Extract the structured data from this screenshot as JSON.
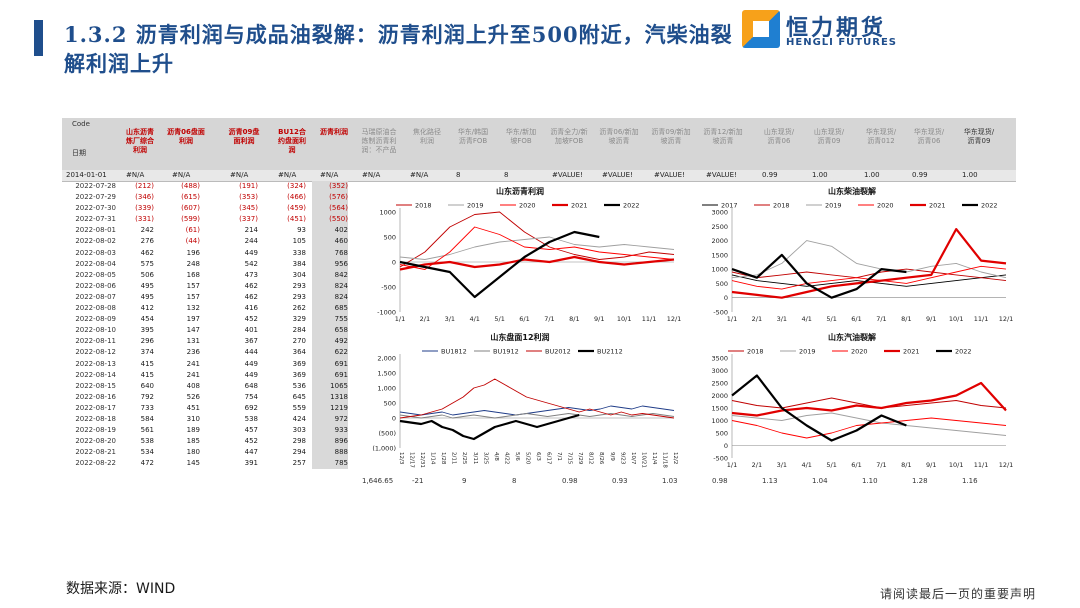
{
  "header": {
    "title_line1": "1.3.2 沥青利润与成品油裂解：沥青利润上升至500附近，汽柴油裂",
    "title_line2": "解利润上升",
    "logo_cn": "恒力期货",
    "logo_en": "HENGLI FUTURES"
  },
  "table": {
    "code_label": "Code",
    "date_label": "日期",
    "headers": [
      {
        "text": "山东沥青\n炼厂综合\n利润",
        "style": "red"
      },
      {
        "text": "沥青06盘面\n利润",
        "style": "red"
      },
      {
        "text": "沥青09盘\n面利润",
        "style": "red"
      },
      {
        "text": "BU12合\n约盘面利\n润",
        "style": "red"
      },
      {
        "text": "沥青利润",
        "style": "red"
      },
      {
        "text": "马瑞原油合\n炼制沥青利\n润：不产品",
        "style": "grey"
      },
      {
        "text": "焦化路径\n利润",
        "style": "grey"
      },
      {
        "text": "华东/韩国\n沥青FOB",
        "style": "grey"
      },
      {
        "text": "华东/新加\n坡FOB",
        "style": "grey"
      },
      {
        "text": "沥青全力/新\n加坡FOB",
        "style": "grey"
      },
      {
        "text": "沥青06/新加\n坡沥青",
        "style": "grey"
      },
      {
        "text": "沥青09/新加\n坡沥青",
        "style": "grey"
      },
      {
        "text": "沥青12/新加\n坡沥青",
        "style": "grey"
      },
      {
        "text": "山东现货/\n沥青06",
        "style": "grey"
      },
      {
        "text": "山东现货/\n沥青09",
        "style": "grey"
      },
      {
        "text": "华东现货/\n沥青012",
        "style": "grey"
      },
      {
        "text": "华东现货/\n沥青06",
        "style": "grey"
      },
      {
        "text": "华东现货/\n沥青09",
        "style": "dark"
      }
    ],
    "first_row": [
      "2014-01-01",
      "#N/A",
      "#N/A",
      "#N/A",
      "#N/A",
      "#N/A",
      "#N/A",
      "#N/A",
      "8",
      "8",
      "#VALUE!",
      "#VALUE!",
      "#VALUE!",
      "#VALUE!",
      "0.99",
      "1.00",
      "1.00",
      "0.99",
      "1.00"
    ],
    "rows": [
      [
        "2022-07-28",
        "(212)",
        "(488)",
        "(191)",
        "(324)",
        "(352)"
      ],
      [
        "2022-07-29",
        "(346)",
        "(615)",
        "(353)",
        "(466)",
        "(576)"
      ],
      [
        "2022-07-30",
        "(339)",
        "(607)",
        "(345)",
        "(459)",
        "(564)"
      ],
      [
        "2022-07-31",
        "(331)",
        "(599)",
        "(337)",
        "(451)",
        "(550)"
      ],
      [
        "2022-08-01",
        "242",
        "(61)",
        "214",
        "93",
        "402"
      ],
      [
        "2022-08-02",
        "276",
        "(44)",
        "244",
        "105",
        "460"
      ],
      [
        "2022-08-03",
        "462",
        "196",
        "449",
        "338",
        "768"
      ],
      [
        "2022-08-04",
        "575",
        "248",
        "542",
        "384",
        "956"
      ],
      [
        "2022-08-05",
        "506",
        "168",
        "473",
        "304",
        "842"
      ],
      [
        "2022-08-06",
        "495",
        "157",
        "462",
        "293",
        "824"
      ],
      [
        "2022-08-07",
        "495",
        "157",
        "462",
        "293",
        "824"
      ],
      [
        "2022-08-08",
        "412",
        "132",
        "416",
        "262",
        "685"
      ],
      [
        "2022-08-09",
        "454",
        "197",
        "452",
        "329",
        "755"
      ],
      [
        "2022-08-10",
        "395",
        "147",
        "401",
        "284",
        "658"
      ],
      [
        "2022-08-11",
        "296",
        "131",
        "367",
        "270",
        "492"
      ],
      [
        "2022-08-12",
        "374",
        "236",
        "444",
        "364",
        "622"
      ],
      [
        "2022-08-13",
        "415",
        "241",
        "449",
        "369",
        "691"
      ],
      [
        "2022-08-14",
        "415",
        "241",
        "449",
        "369",
        "691"
      ],
      [
        "2022-08-15",
        "640",
        "408",
        "648",
        "536",
        "1065"
      ],
      [
        "2022-08-16",
        "792",
        "526",
        "754",
        "645",
        "1318"
      ],
      [
        "2022-08-17",
        "733",
        "451",
        "692",
        "559",
        "1219"
      ],
      [
        "2022-08-18",
        "584",
        "310",
        "538",
        "424",
        "972"
      ],
      [
        "2022-08-19",
        "561",
        "189",
        "457",
        "303",
        "933"
      ],
      [
        "2022-08-20",
        "538",
        "185",
        "452",
        "298",
        "896"
      ],
      [
        "2022-08-21",
        "534",
        "180",
        "447",
        "294",
        "888"
      ],
      [
        "2022-08-22",
        "472",
        "145",
        "391",
        "257",
        "785"
      ]
    ],
    "last_line": [
      "1,646.65",
      "-21",
      "9",
      "8",
      "0.98",
      "0.93",
      "1.03",
      "0.98",
      "1.13",
      "1.04",
      "1.10",
      "1.28",
      "1.16"
    ]
  },
  "colors": {
    "y2017": "#000000",
    "y2018": "#c00000",
    "y2019": "#a0a0a0",
    "y2020": "#ff0000",
    "y2021": "#e00000",
    "y2022": "#000000",
    "bu1812": "#1f3c88",
    "bu1912": "#808080",
    "bu2012": "#c00000",
    "bu2112": "#000000"
  },
  "chart_data": [
    {
      "type": "line",
      "title": "山东沥青利润",
      "x": [
        "1/1",
        "2/1",
        "3/1",
        "4/1",
        "5/1",
        "6/1",
        "7/1",
        "8/1",
        "9/1",
        "10/1",
        "11/1",
        "12/1"
      ],
      "ylim": [
        -1000,
        1000
      ],
      "yticks": [
        "-1000",
        "-500",
        "0",
        "500",
        "1000"
      ],
      "series": [
        {
          "name": "2018",
          "values": [
            -100,
            200,
            700,
            950,
            1000,
            600,
            300,
            150,
            50,
            100,
            200,
            150
          ]
        },
        {
          "name": "2019",
          "values": [
            100,
            50,
            150,
            300,
            400,
            450,
            500,
            350,
            300,
            350,
            300,
            250
          ]
        },
        {
          "name": "2020",
          "values": [
            -50,
            -150,
            200,
            700,
            550,
            300,
            250,
            300,
            200,
            150,
            100,
            50
          ]
        },
        {
          "name": "2021",
          "values": [
            -150,
            -50,
            0,
            -100,
            -50,
            50,
            0,
            100,
            0,
            -50,
            0,
            50
          ]
        },
        {
          "name": "2022",
          "values": [
            0,
            -100,
            -200,
            -700,
            -300,
            100,
            400,
            600,
            500,
            null,
            null,
            null
          ]
        }
      ]
    },
    {
      "type": "line",
      "title": "山东柴油裂解",
      "x": [
        "1/1",
        "2/1",
        "3/1",
        "4/1",
        "5/1",
        "6/1",
        "7/1",
        "8/1",
        "9/1",
        "10/1",
        "11/1",
        "12/1"
      ],
      "ylim": [
        -500,
        3000
      ],
      "yticks": [
        "-500",
        "0",
        "500",
        "1000",
        "1500",
        "2000",
        "2500",
        "3000"
      ],
      "series": [
        {
          "name": "2017",
          "values": [
            800,
            600,
            500,
            400,
            500,
            600,
            500,
            400,
            500,
            600,
            700,
            800
          ]
        },
        {
          "name": "2018",
          "values": [
            900,
            700,
            800,
            900,
            800,
            700,
            900,
            1000,
            900,
            800,
            700,
            600
          ]
        },
        {
          "name": "2019",
          "values": [
            700,
            800,
            1200,
            2000,
            1800,
            1200,
            1000,
            900,
            1100,
            1200,
            900,
            700
          ]
        },
        {
          "name": "2020",
          "values": [
            600,
            400,
            300,
            500,
            600,
            700,
            600,
            500,
            700,
            900,
            1100,
            1000
          ]
        },
        {
          "name": "2021",
          "values": [
            200,
            100,
            0,
            200,
            400,
            500,
            600,
            700,
            800,
            2400,
            1300,
            1200
          ]
        },
        {
          "name": "2022",
          "values": [
            1000,
            700,
            1500,
            500,
            0,
            300,
            1000,
            900,
            null,
            null,
            null,
            null
          ]
        }
      ]
    },
    {
      "type": "line",
      "title": "山东盘面12利润",
      "x": [
        "12/3",
        "12/17",
        "12/31",
        "1/14",
        "1/28",
        "2/11",
        "2/25",
        "3/11",
        "3/25",
        "4/8",
        "4/22",
        "5/6",
        "5/20",
        "6/3",
        "6/17",
        "7/1",
        "7/15",
        "7/29",
        "8/12",
        "8/26",
        "9/9",
        "9/23",
        "10/7",
        "10/21",
        "11/4",
        "11/18",
        "12/2"
      ],
      "ylim": [
        -1000,
        2000
      ],
      "yticks": [
        "(1,000)",
        "(500)",
        "0",
        "500",
        "1,000",
        "1,500",
        "2,000"
      ],
      "series": [
        {
          "name": "BU1812",
          "values": [
            200,
            150,
            100,
            150,
            200,
            100,
            150,
            200,
            250,
            200,
            150,
            100,
            150,
            200,
            250,
            300,
            350,
            300,
            250,
            300,
            400,
            350,
            300,
            400,
            350,
            300,
            250
          ]
        },
        {
          "name": "BU1912",
          "values": [
            100,
            50,
            0,
            50,
            100,
            0,
            50,
            100,
            50,
            0,
            50,
            100,
            150,
            100,
            50,
            100,
            150,
            100,
            50,
            100,
            150,
            100,
            50,
            100,
            150,
            100,
            50
          ]
        },
        {
          "name": "BU2012",
          "values": [
            0,
            50,
            100,
            200,
            300,
            500,
            700,
            1000,
            1100,
            1300,
            1100,
            900,
            700,
            600,
            500,
            400,
            300,
            200,
            300,
            200,
            100,
            200,
            100,
            150,
            100,
            50,
            0
          ]
        },
        {
          "name": "BU2112",
          "values": [
            -100,
            -150,
            -200,
            -100,
            -300,
            -400,
            -600,
            -700,
            -500,
            -300,
            -200,
            -100,
            -200,
            -300,
            -200,
            -100,
            0,
            100,
            null,
            null,
            null,
            null,
            null,
            null,
            null,
            null,
            null
          ]
        }
      ]
    },
    {
      "type": "line",
      "title": "山东汽油裂解",
      "x": [
        "1/1",
        "2/1",
        "3/1",
        "4/1",
        "5/1",
        "6/1",
        "7/1",
        "8/1",
        "9/1",
        "10/1",
        "11/1",
        "12/1"
      ],
      "ylim": [
        -500,
        3500
      ],
      "yticks": [
        "-500",
        "0",
        "500",
        "1000",
        "1500",
        "2000",
        "2500",
        "3000",
        "3500"
      ],
      "series": [
        {
          "name": "2018",
          "values": [
            1800,
            1600,
            1500,
            1700,
            1900,
            1700,
            1500,
            1600,
            1700,
            1800,
            1600,
            1500
          ]
        },
        {
          "name": "2019",
          "values": [
            1200,
            1100,
            1000,
            1200,
            1300,
            1100,
            900,
            800,
            700,
            600,
            500,
            400
          ]
        },
        {
          "name": "2020",
          "values": [
            1000,
            800,
            500,
            300,
            500,
            800,
            900,
            1000,
            1100,
            1000,
            900,
            800
          ]
        },
        {
          "name": "2021",
          "values": [
            1300,
            1200,
            1400,
            1500,
            1400,
            1600,
            1500,
            1700,
            1800,
            2000,
            2500,
            1400
          ]
        },
        {
          "name": "2022",
          "values": [
            2000,
            2800,
            1500,
            800,
            200,
            600,
            1200,
            800,
            null,
            null,
            null,
            null
          ]
        }
      ]
    }
  ],
  "footer": {
    "source": "数据来源：WIND",
    "disclaimer": "请阅读最后一页的重要声明"
  }
}
